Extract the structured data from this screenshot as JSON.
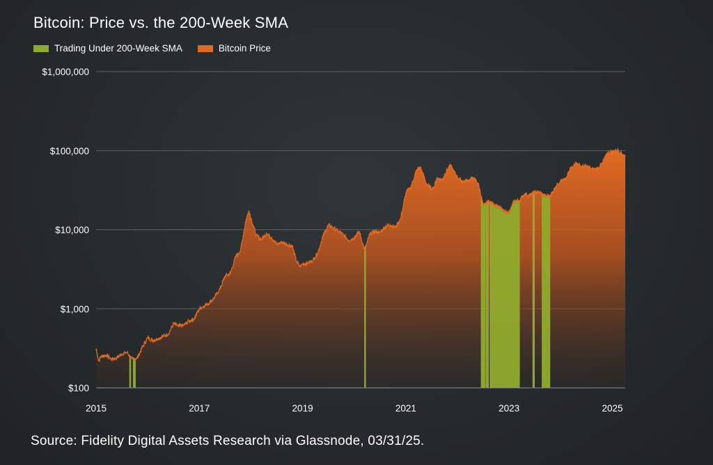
{
  "header": {
    "title": "Bitcoin: Price vs. the 200-Week SMA"
  },
  "legend": {
    "items": [
      {
        "label": "Trading Under 200-Week SMA",
        "color": "#8fab2c"
      },
      {
        "label": "Bitcoin Price",
        "color": "#e26b23"
      }
    ]
  },
  "footer": {
    "source": "Source: Fidelity Digital Assets Research via Glassnode, 03/31/25."
  },
  "chart_data": {
    "type": "area",
    "title": "Bitcoin: Price vs. the 200-Week SMA",
    "xlabel": "",
    "ylabel": "",
    "y_scale": "log",
    "ylim": [
      100,
      1000000
    ],
    "xlim": [
      2015.0,
      2025.25
    ],
    "grid": true,
    "legend_placement": "top-left",
    "x_ticks": [
      2015,
      2017,
      2019,
      2021,
      2023,
      2025
    ],
    "x_tick_labels": [
      "2015",
      "2017",
      "2019",
      "2021",
      "2023",
      "2025"
    ],
    "y_ticks": [
      100,
      1000,
      10000,
      100000,
      1000000
    ],
    "y_tick_labels": [
      "$100",
      "$1,000",
      "$10,000",
      "$100,000",
      "$1,000,000"
    ],
    "series": [
      {
        "name": "Bitcoin Price",
        "color": "#e26b23",
        "x": [
          2015.0,
          2015.05,
          2015.1,
          2015.2,
          2015.3,
          2015.4,
          2015.5,
          2015.6,
          2015.7,
          2015.8,
          2015.9,
          2016.0,
          2016.1,
          2016.2,
          2016.3,
          2016.4,
          2016.5,
          2016.6,
          2016.7,
          2016.8,
          2016.9,
          2017.0,
          2017.1,
          2017.2,
          2017.3,
          2017.4,
          2017.5,
          2017.6,
          2017.7,
          2017.8,
          2017.9,
          2017.96,
          2018.0,
          2018.05,
          2018.1,
          2018.2,
          2018.3,
          2018.4,
          2018.5,
          2018.6,
          2018.7,
          2018.8,
          2018.88,
          2018.95,
          2019.0,
          2019.1,
          2019.2,
          2019.3,
          2019.4,
          2019.5,
          2019.6,
          2019.7,
          2019.8,
          2019.9,
          2020.0,
          2020.1,
          2020.2,
          2020.25,
          2020.3,
          2020.4,
          2020.5,
          2020.6,
          2020.7,
          2020.8,
          2020.9,
          2021.0,
          2021.1,
          2021.2,
          2021.28,
          2021.4,
          2021.5,
          2021.55,
          2021.6,
          2021.7,
          2021.8,
          2021.86,
          2022.0,
          2022.1,
          2022.2,
          2022.3,
          2022.4,
          2022.5,
          2022.6,
          2022.7,
          2022.8,
          2022.9,
          2023.0,
          2023.1,
          2023.2,
          2023.3,
          2023.4,
          2023.5,
          2023.6,
          2023.7,
          2023.8,
          2023.9,
          2024.0,
          2024.1,
          2024.2,
          2024.3,
          2024.4,
          2024.5,
          2024.6,
          2024.7,
          2024.8,
          2024.9,
          2025.0,
          2025.1,
          2025.25
        ],
        "values": [
          315,
          220,
          250,
          260,
          230,
          240,
          270,
          280,
          230,
          240,
          330,
          430,
          400,
          420,
          450,
          480,
          650,
          600,
          620,
          700,
          750,
          1000,
          1100,
          1200,
          1400,
          1800,
          2600,
          2800,
          4500,
          5500,
          13000,
          17500,
          14000,
          11000,
          8500,
          7500,
          9000,
          8000,
          6500,
          7000,
          6500,
          6300,
          4000,
          3400,
          3700,
          3800,
          4100,
          5200,
          8500,
          11500,
          10500,
          9500,
          8500,
          7300,
          8000,
          9500,
          5500,
          6900,
          8800,
          9500,
          9200,
          11000,
          11500,
          10700,
          13800,
          29000,
          35000,
          55000,
          62000,
          38000,
          33000,
          35000,
          45000,
          43000,
          57000,
          65000,
          46000,
          41000,
          42000,
          45000,
          39000,
          20000,
          23000,
          21000,
          19500,
          17000,
          16500,
          23000,
          23500,
          28500,
          27000,
          30000,
          29500,
          26500,
          27000,
          35000,
          42000,
          43000,
          62000,
          70000,
          63000,
          64000,
          58000,
          59000,
          68000,
          93000,
          97000,
          102000,
          85000
        ]
      },
      {
        "name": "Trading Under 200-Week SMA",
        "color": "#8fab2c",
        "periods": [
          [
            2015.65,
            2015.67
          ],
          [
            2015.72,
            2015.76
          ],
          [
            2020.2,
            2020.22
          ],
          [
            2022.46,
            2022.54
          ],
          [
            2022.56,
            2022.6
          ],
          [
            2022.63,
            2023.2
          ],
          [
            2023.46,
            2023.49
          ],
          [
            2023.64,
            2023.79
          ]
        ]
      }
    ]
  }
}
